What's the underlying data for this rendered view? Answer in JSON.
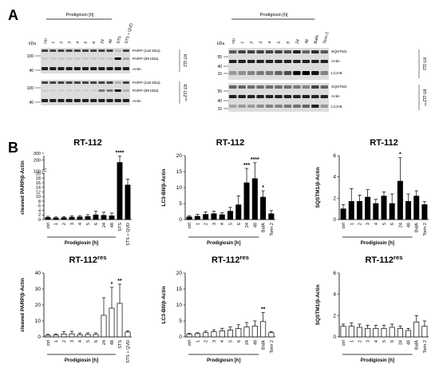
{
  "panel_a": {
    "letter": "A",
    "left": {
      "group_label": "Prodigiosin [h]",
      "lanes": [
        "ctrl",
        "1",
        "2",
        "3",
        "4",
        "5",
        "6",
        "24",
        "48",
        "STS",
        "STS + QVD"
      ],
      "kda_label": "kDa",
      "top_block": {
        "cell_line": "RT-112",
        "markers": [
          "100",
          "40"
        ],
        "bands": [
          "PARP (116 kDa)",
          "PARP (89 kDa)",
          "Actin"
        ]
      },
      "bottom_block": {
        "cell_line": "RT-112",
        "cell_line_sup": "res",
        "markers": [
          "100",
          "40"
        ],
        "bands": [
          "PARP (116 kDa)",
          "PARP (89 kDa)",
          "Actin"
        ]
      }
    },
    "right": {
      "group_label": "Prodigiosin [h]",
      "lanes": [
        "ctrl",
        "1",
        "2",
        "3",
        "4",
        "5",
        "6",
        "24",
        "48",
        "BafA",
        "Torin 2"
      ],
      "kda_label": "kDa",
      "top_block": {
        "cell_line": "RT-112",
        "markers": [
          "55",
          "40",
          "15"
        ],
        "bands": [
          "SQSTM1",
          "Actin",
          "LC3-B"
        ]
      },
      "bottom_block": {
        "cell_line": "RT-112",
        "cell_line_sup": "res",
        "markers": [
          "55",
          "40",
          "15"
        ],
        "bands": [
          "SQSTM1",
          "Actin",
          "LC3-B"
        ]
      }
    }
  },
  "panel_b": {
    "letter": "B"
  },
  "chart_data": [
    {
      "type": "bar",
      "title": "RT-112",
      "ylabel": "cleaved PARP/β-Actin",
      "xlabel": "Prodigiosin [h]",
      "fill": "black",
      "categories": [
        "ctrl",
        "1",
        "2",
        "3",
        "4",
        "5",
        "6",
        "24",
        "48",
        "STS",
        "STS + QVD"
      ],
      "values": [
        0.9,
        0.7,
        0.8,
        1.0,
        1.1,
        1.3,
        2.0,
        1.8,
        1.6,
        170,
        15
      ],
      "errors": [
        0.5,
        0.4,
        0.5,
        0.6,
        0.6,
        0.8,
        1.6,
        1.4,
        1.2,
        80,
        2.5
      ],
      "significance": [
        "",
        "",
        "",
        "",
        "",
        "",
        "",
        "",
        "",
        "****",
        ""
      ],
      "yticks": [
        "0",
        "2",
        "4",
        "6",
        "8",
        "10",
        "12",
        "14",
        "16",
        "18",
        "20",
        "100",
        "200",
        "300"
      ],
      "axis_break": [
        20,
        50
      ],
      "ylim": [
        0,
        300
      ]
    },
    {
      "type": "bar",
      "title": "RT-112",
      "ylabel": "LC3-BII/β-Actin",
      "xlabel": "Prodigiosin [h]",
      "fill": "black",
      "categories": [
        "ctrl",
        "1",
        "2",
        "3",
        "4",
        "5",
        "6",
        "24",
        "48",
        "BafA",
        "Torin 2"
      ],
      "values": [
        0.8,
        1.0,
        1.6,
        1.8,
        1.5,
        2.6,
        4.6,
        11.5,
        12.8,
        7.0,
        1.8
      ],
      "errors": [
        0.4,
        0.6,
        0.8,
        0.8,
        0.6,
        1.2,
        2.8,
        4.5,
        5.0,
        2.0,
        1.0
      ],
      "significance": [
        "",
        "",
        "",
        "",
        "",
        "",
        "",
        "***",
        "****",
        "*",
        ""
      ],
      "yticks": [
        "0",
        "5",
        "10",
        "15",
        "20"
      ],
      "ylim": [
        0,
        20
      ]
    },
    {
      "type": "bar",
      "title": "RT-112",
      "ylabel": "SQSTM1/β-Actin",
      "xlabel": "Prodigiosin [h]",
      "fill": "black",
      "categories": [
        "ctrl",
        "1",
        "2",
        "3",
        "4",
        "5",
        "6",
        "24",
        "48",
        "BafA",
        "Torin 2"
      ],
      "values": [
        1.0,
        1.7,
        1.7,
        2.1,
        1.5,
        2.2,
        1.5,
        3.6,
        1.7,
        2.2,
        1.4
      ],
      "errors": [
        0.4,
        1.2,
        0.6,
        0.7,
        0.4,
        0.4,
        0.9,
        2.2,
        0.7,
        0.5,
        0.3
      ],
      "significance": [
        "",
        "",
        "",
        "",
        "",
        "",
        "",
        "*",
        "",
        "",
        ""
      ],
      "yticks": [
        "0",
        "2",
        "4",
        "6"
      ],
      "ylim": [
        0,
        6
      ]
    },
    {
      "type": "bar",
      "title": "RT-112",
      "title_sup": "res",
      "ylabel": "cleaved PARP/β-Actin",
      "xlabel": "Prodigiosin [h]",
      "fill": "white",
      "categories": [
        "ctrl",
        "1",
        "2",
        "3",
        "4",
        "5",
        "6",
        "24",
        "48",
        "STS",
        "STS + QVD"
      ],
      "values": [
        1.0,
        1.1,
        1.8,
        1.9,
        1.4,
        1.5,
        1.5,
        13.5,
        18.0,
        21.0,
        3.0
      ],
      "errors": [
        0.6,
        0.7,
        1.6,
        1.6,
        1.0,
        1.0,
        1.0,
        11.0,
        13.0,
        12.0,
        0.7
      ],
      "significance": [
        "",
        "",
        "",
        "",
        "",
        "",
        "",
        "",
        "*",
        "**",
        ""
      ],
      "yticks": [
        "0",
        "10",
        "20",
        "30",
        "40"
      ],
      "ylim": [
        0,
        40
      ]
    },
    {
      "type": "bar",
      "title": "RT-112",
      "title_sup": "res",
      "ylabel": "LC3-BII/β-Actin",
      "xlabel": "Prodigiosin [h]",
      "fill": "white",
      "categories": [
        "ctrl",
        "1",
        "2",
        "3",
        "4",
        "5",
        "6",
        "24",
        "48",
        "BafA",
        "Torin 2"
      ],
      "values": [
        0.8,
        1.0,
        1.3,
        1.6,
        1.9,
        2.1,
        2.6,
        3.1,
        3.4,
        4.8,
        1.3
      ],
      "errors": [
        0.3,
        0.3,
        0.5,
        0.6,
        0.8,
        1.0,
        1.2,
        1.4,
        1.6,
        2.8,
        0.4
      ],
      "significance": [
        "",
        "",
        "",
        "",
        "",
        "",
        "",
        "",
        "",
        "**",
        ""
      ],
      "yticks": [
        "0",
        "5",
        "10",
        "15",
        "20"
      ],
      "ylim": [
        0,
        20
      ]
    },
    {
      "type": "bar",
      "title": "RT-112",
      "title_sup": "res",
      "ylabel": "SQSTM1/β-Actin",
      "xlabel": "Prodigiosin [h]",
      "fill": "white",
      "categories": [
        "ctrl",
        "1",
        "2",
        "3",
        "4",
        "5",
        "6",
        "24",
        "48",
        "BafA",
        "Torin 2"
      ],
      "values": [
        1.0,
        1.0,
        0.9,
        0.8,
        0.8,
        0.8,
        0.9,
        0.8,
        0.6,
        1.4,
        1.0
      ],
      "errors": [
        0.2,
        0.3,
        0.3,
        0.3,
        0.3,
        0.3,
        0.3,
        0.2,
        0.2,
        0.6,
        0.5
      ],
      "significance": [
        "",
        "",
        "",
        "",
        "",
        "",
        "",
        "",
        "",
        "",
        ""
      ],
      "yticks": [
        "0",
        "2",
        "4",
        "6"
      ],
      "ylim": [
        0,
        6
      ]
    }
  ]
}
